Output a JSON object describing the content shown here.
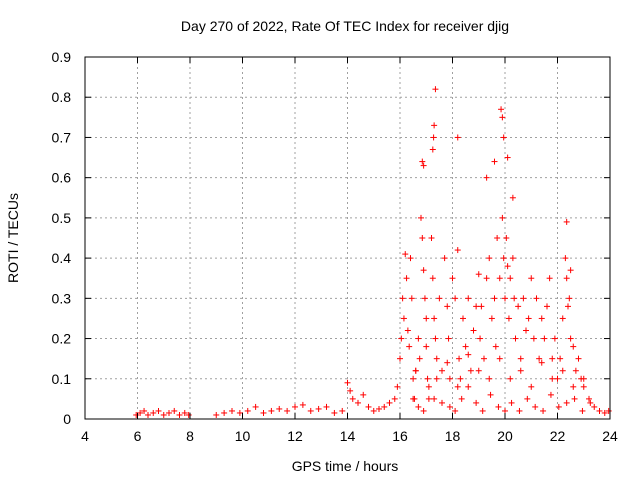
{
  "chart_data": {
    "type": "scatter",
    "title": "Day 270 of 2022, Rate Of TEC Index for receiver djig",
    "xlabel": "GPS time / hours",
    "ylabel": "ROTI / TECUs",
    "xlim": [
      4,
      24
    ],
    "ylim": [
      0,
      0.9
    ],
    "xticks": [
      "4",
      "6",
      "8",
      "10",
      "12",
      "14",
      "16",
      "18",
      "20",
      "22",
      "24"
    ],
    "yticks": [
      "0",
      "0.1",
      "0.2",
      "0.3",
      "0.4",
      "0.5",
      "0.6",
      "0.7",
      "0.8",
      "0.9"
    ],
    "grid": true,
    "marker": "plus",
    "color": "#ff0000",
    "series": [
      {
        "x": [
          5.95,
          6.1,
          6.25,
          6.4,
          6.6,
          6.8,
          7.0,
          7.2,
          7.4,
          7.6,
          7.8,
          7.95,
          9.0,
          9.3,
          9.6,
          9.9,
          10.2,
          10.5,
          10.8,
          11.1,
          11.4,
          11.7,
          12.0,
          12.3,
          12.6,
          12.9,
          13.2,
          13.5,
          13.8,
          14.0,
          14.1,
          14.2,
          14.4,
          14.6,
          14.8,
          15.0,
          15.2,
          15.4,
          15.6,
          15.8,
          15.9,
          16.0,
          16.05,
          16.1,
          16.15,
          16.2,
          16.25,
          16.3,
          16.35,
          16.4,
          16.45,
          16.5,
          16.55,
          16.6,
          16.7,
          16.75,
          16.8,
          16.85,
          16.9,
          16.95,
          17.0,
          17.05,
          17.1,
          17.2,
          17.25,
          17.3,
          17.35,
          17.4,
          17.5,
          17.6,
          17.7,
          17.8,
          17.85,
          17.9,
          18.0,
          18.1,
          18.2,
          18.25,
          18.3,
          18.4,
          18.5,
          18.6,
          18.7,
          18.8,
          18.9,
          19.0,
          19.05,
          19.1,
          19.2,
          19.3,
          19.4,
          19.5,
          19.6,
          19.65,
          19.7,
          19.8,
          19.9,
          19.95,
          20.0,
          20.05,
          20.1,
          20.15,
          20.2,
          20.3,
          20.35,
          20.4,
          20.5,
          20.6,
          20.7,
          20.8,
          20.9,
          21.0,
          21.1,
          21.2,
          21.3,
          21.4,
          21.5,
          21.6,
          21.7,
          21.8,
          21.9,
          22.0,
          22.1,
          22.2,
          22.3,
          22.35,
          22.4,
          22.45,
          22.5,
          22.6,
          22.7,
          22.8,
          22.9,
          23.0,
          23.2,
          23.4,
          23.6,
          23.8,
          23.95,
          16.5,
          16.7,
          16.9,
          17.1,
          17.3,
          17.6,
          17.9,
          18.1,
          18.35,
          18.6,
          18.9,
          19.15,
          19.45,
          19.75,
          20.0,
          20.25,
          20.55,
          20.85,
          21.15,
          21.45,
          21.75,
          22.05,
          22.35,
          22.65,
          22.95,
          23.25,
          16.6,
          17.0,
          17.4,
          17.8,
          18.2,
          18.6,
          19.0,
          19.4,
          19.8,
          20.2,
          20.6,
          21.0,
          21.4,
          21.8,
          22.2,
          22.6,
          23.0,
          17.35,
          17.3,
          17.28,
          17.25,
          16.85,
          16.9,
          18.2,
          19.3,
          19.6,
          19.85,
          19.9,
          19.95,
          20.1,
          20.3,
          22.35,
          22.5
        ],
        "y": [
          0.01,
          0.015,
          0.02,
          0.01,
          0.015,
          0.02,
          0.01,
          0.015,
          0.02,
          0.01,
          0.015,
          0.01,
          0.01,
          0.015,
          0.02,
          0.015,
          0.02,
          0.03,
          0.015,
          0.02,
          0.025,
          0.02,
          0.03,
          0.035,
          0.02,
          0.025,
          0.03,
          0.015,
          0.02,
          0.09,
          0.07,
          0.05,
          0.04,
          0.06,
          0.03,
          0.02,
          0.025,
          0.03,
          0.04,
          0.05,
          0.08,
          0.15,
          0.2,
          0.3,
          0.25,
          0.41,
          0.35,
          0.22,
          0.18,
          0.4,
          0.3,
          0.1,
          0.05,
          0.12,
          0.2,
          0.15,
          0.5,
          0.45,
          0.37,
          0.3,
          0.25,
          0.1,
          0.05,
          0.45,
          0.35,
          0.25,
          0.2,
          0.15,
          0.3,
          0.12,
          0.4,
          0.28,
          0.2,
          0.1,
          0.35,
          0.3,
          0.42,
          0.15,
          0.1,
          0.25,
          0.18,
          0.3,
          0.12,
          0.22,
          0.28,
          0.36,
          0.2,
          0.28,
          0.15,
          0.35,
          0.4,
          0.25,
          0.3,
          0.18,
          0.45,
          0.35,
          0.5,
          0.4,
          0.3,
          0.45,
          0.38,
          0.25,
          0.35,
          0.4,
          0.3,
          0.2,
          0.28,
          0.15,
          0.3,
          0.22,
          0.25,
          0.35,
          0.2,
          0.3,
          0.15,
          0.25,
          0.2,
          0.28,
          0.35,
          0.15,
          0.2,
          0.1,
          0.15,
          0.25,
          0.4,
          0.35,
          0.28,
          0.3,
          0.2,
          0.18,
          0.12,
          0.15,
          0.1,
          0.08,
          0.05,
          0.03,
          0.02,
          0.015,
          0.02,
          0.05,
          0.03,
          0.02,
          0.08,
          0.05,
          0.04,
          0.03,
          0.02,
          0.05,
          0.08,
          0.04,
          0.02,
          0.06,
          0.03,
          0.02,
          0.04,
          0.02,
          0.05,
          0.03,
          0.02,
          0.06,
          0.03,
          0.04,
          0.05,
          0.02,
          0.04,
          0.12,
          0.18,
          0.1,
          0.14,
          0.08,
          0.16,
          0.12,
          0.1,
          0.15,
          0.1,
          0.12,
          0.08,
          0.14,
          0.1,
          0.12,
          0.08,
          0.1,
          0.82,
          0.73,
          0.7,
          0.67,
          0.64,
          0.63,
          0.7,
          0.6,
          0.64,
          0.77,
          0.75,
          0.7,
          0.65,
          0.55,
          0.49,
          0.37
        ]
      }
    ]
  }
}
